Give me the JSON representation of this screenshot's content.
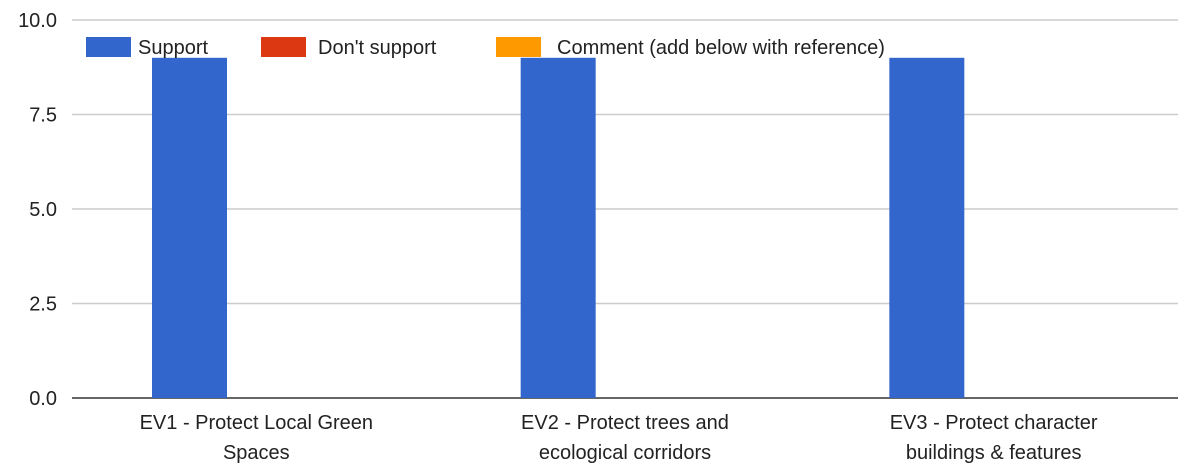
{
  "chart_data": {
    "type": "bar",
    "title": "",
    "xlabel": "",
    "ylabel": "",
    "ylim": [
      0,
      10
    ],
    "yticks": [
      0,
      2.5,
      5,
      7.5,
      10
    ],
    "ytick_labels": [
      "0.0",
      "2.5",
      "5.0",
      "7.5",
      "10.0"
    ],
    "grid": true,
    "legend_position": "top-left",
    "categories": [
      [
        "EV1 - Protect Local Green",
        "Spaces"
      ],
      [
        "EV2 - Protect trees and",
        "ecological corridors"
      ],
      [
        "EV3 - Protect character",
        "buildings & features"
      ]
    ],
    "series": [
      {
        "name": "Support",
        "color": "#3366cc",
        "values": [
          9,
          9,
          9
        ]
      },
      {
        "name": "Don't support",
        "color": "#dc3912",
        "values": [
          0,
          0,
          0
        ]
      },
      {
        "name": "Comment (add below with reference)",
        "color": "#ff9900",
        "values": [
          0,
          0,
          0
        ]
      }
    ]
  }
}
